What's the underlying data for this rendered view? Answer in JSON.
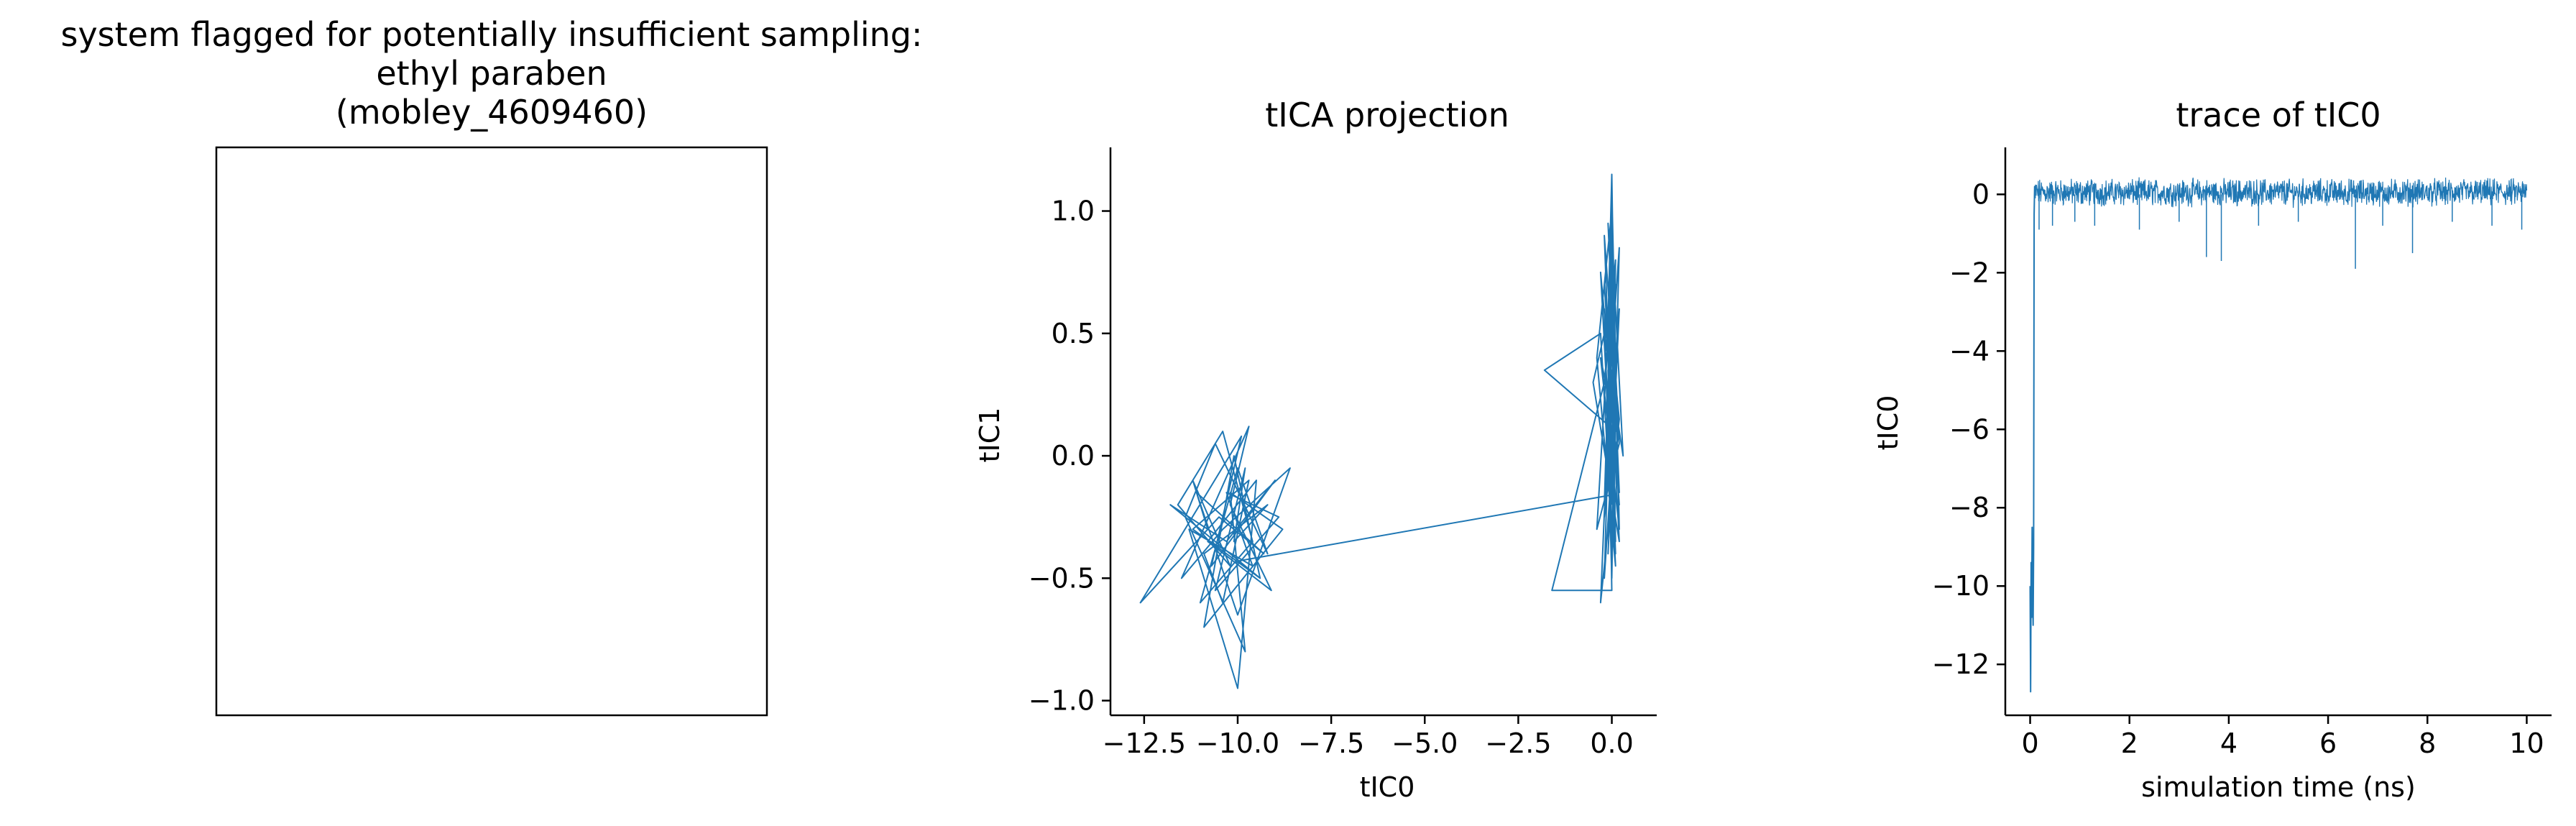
{
  "panel1": {
    "title_lines": [
      "system flagged for potentially insufficient sampling:",
      "ethyl paraben",
      "(mobley_4609460)"
    ]
  },
  "chart_data": [
    {
      "type": "line",
      "title": "tICA projection",
      "xlabel": "tIC0",
      "ylabel": "tIC1",
      "xlim": [
        -13.4,
        1.2
      ],
      "ylim": [
        -1.06,
        1.26
      ],
      "xticks": [
        -12.5,
        -10.0,
        -7.5,
        -5.0,
        -2.5,
        0.0
      ],
      "xtick_labels": [
        "−12.5",
        "−10.0",
        "−7.5",
        "−5.0",
        "−2.5",
        "0.0"
      ],
      "yticks": [
        -1.0,
        -0.5,
        0.0,
        0.5,
        1.0
      ],
      "ytick_labels": [
        "−1.0",
        "−0.5",
        "0.0",
        "0.5",
        "1.0"
      ],
      "grid": false,
      "color": "#1f77b4",
      "series": [
        {
          "x": [
            -10.8,
            -11.2,
            -10.2,
            -11.6,
            -10.4,
            -9.6,
            -11.0,
            -10.0,
            -9.2,
            -10.6,
            -11.4,
            -9.8,
            -10.2,
            -8.8,
            -10.9,
            -10.1,
            -9.4,
            -11.8,
            -10.3,
            -9.0,
            -10.7,
            -9.9,
            -12.6,
            -10.5,
            -9.3,
            -11.1,
            -10.0,
            -8.6,
            -10.4,
            -11.5,
            -9.7,
            -10.2,
            -9.1,
            -10.8,
            -9.5,
            -10.0,
            -11.3,
            -9.6,
            -10.3,
            -8.9,
            -10.6,
            -9.8,
            -10.1,
            -9.2,
            -10.9,
            -10.4,
            -9.7,
            -11.2,
            -9.4,
            -10.0
          ],
          "y": [
            -0.3,
            -0.1,
            -0.45,
            -0.2,
            0.1,
            -0.35,
            -0.6,
            -0.05,
            -0.4,
            0.05,
            -0.25,
            -0.8,
            -0.15,
            -0.3,
            -0.7,
            0.0,
            -0.5,
            -0.2,
            -0.35,
            -0.1,
            -0.45,
            0.08,
            -0.6,
            -0.25,
            -0.4,
            -0.15,
            -0.65,
            -0.05,
            -0.3,
            -0.5,
            0.12,
            -0.2,
            -0.55,
            -0.35,
            -0.1,
            -0.95,
            -0.3,
            -0.45,
            -0.15,
            -0.25,
            -0.55,
            -0.05,
            -0.35,
            -0.2,
            -0.4,
            -0.6,
            -0.1,
            -0.3,
            -0.5,
            -0.43
          ]
        },
        {
          "x": [
            -10.0,
            0.0
          ],
          "y": [
            -0.43,
            -0.16
          ]
        },
        {
          "x": [
            0.0,
            0.1,
            -0.1,
            0.2,
            -0.2,
            0.0,
            0.1,
            -0.3,
            0.2,
            0.0,
            -0.1,
            0.1,
            -0.2,
            0.3,
            0.0,
            -0.1,
            0.1,
            -0.5,
            0.2,
            -0.1,
            0.0,
            0.1,
            -0.2,
            0.0,
            0.2,
            -0.1,
            0.1,
            -0.3,
            0.0,
            0.2,
            -0.1,
            0.1,
            0.0,
            -0.2,
            0.1,
            -1.8,
            -0.3,
            0.0,
            0.2,
            -0.1,
            0.1,
            -0.4,
            0.0,
            0.1,
            -0.2,
            0.2,
            -0.1,
            0.0,
            -1.6,
            -0.2,
            0.1,
            0.0,
            -0.1,
            0.2,
            -0.3,
            0.0,
            0.1,
            -0.2,
            0.1,
            0.0,
            -0.1,
            0.2,
            -0.4,
            0.0,
            0.1,
            -0.2,
            0.0,
            0.1,
            -0.1,
            0.0
          ],
          "y": [
            -0.16,
            0.3,
            -0.4,
            0.6,
            -0.2,
            0.8,
            0.1,
            0.4,
            -0.3,
            1.1,
            0.2,
            -0.45,
            0.5,
            0.0,
            0.9,
            -0.1,
            0.7,
            0.3,
            -0.35,
            0.55,
            1.15,
            0.15,
            -0.25,
            0.65,
            0.05,
            0.45,
            -0.4,
            0.75,
            0.25,
            -0.15,
            0.95,
            0.35,
            -0.5,
            0.6,
            0.1,
            0.35,
            0.5,
            -0.3,
            0.85,
            0.2,
            -0.45,
            0.4,
            1.0,
            0.0,
            0.7,
            -0.2,
            0.45,
            -0.55,
            -0.55,
            0.3,
            0.8,
            -0.1,
            0.6,
            0.15,
            -0.6,
            0.5,
            -0.35,
            0.9,
            0.25,
            -0.45,
            0.4,
            0.05,
            -0.3,
            0.75,
            0.2,
            -0.5,
            0.55,
            0.0,
            0.35,
            -0.2
          ]
        }
      ]
    },
    {
      "type": "line",
      "title": "trace of tIC0",
      "xlabel": "simulation time (ns)",
      "ylabel": "tIC0",
      "xlim": [
        -0.5,
        10.5
      ],
      "ylim": [
        -13.3,
        1.2
      ],
      "xticks": [
        0,
        2,
        4,
        6,
        8,
        10
      ],
      "xtick_labels": [
        "0",
        "2",
        "4",
        "6",
        "8",
        "10"
      ],
      "yticks": [
        0,
        -2,
        -4,
        -6,
        -8,
        -10,
        -12
      ],
      "ytick_labels": [
        "0",
        "−2",
        "−4",
        "−6",
        "−8",
        "−10",
        "−12"
      ],
      "grid": false,
      "color": "#1f77b4",
      "dips": [
        [
          0.18,
          -0.9
        ],
        [
          0.45,
          -0.8
        ],
        [
          0.9,
          -0.7
        ],
        [
          1.3,
          -0.8
        ],
        [
          2.2,
          -0.9
        ],
        [
          3.0,
          -0.7
        ],
        [
          3.55,
          -1.6
        ],
        [
          3.85,
          -1.7
        ],
        [
          4.6,
          -0.8
        ],
        [
          5.4,
          -0.7
        ],
        [
          6.55,
          -1.9
        ],
        [
          7.1,
          -0.8
        ],
        [
          7.7,
          -1.5
        ],
        [
          8.5,
          -0.7
        ],
        [
          9.3,
          -0.8
        ],
        [
          9.9,
          -0.9
        ]
      ],
      "series": [
        {
          "x": [
            0.0,
            0.01,
            0.02,
            0.03,
            0.04,
            0.05,
            0.06,
            0.07,
            0.08,
            0.09,
            0.1
          ],
          "y": [
            -10.0,
            -12.7,
            -9.4,
            -10.8,
            -8.5,
            -10.3,
            -11.0,
            -9.0,
            -0.5,
            0.2,
            -0.1
          ]
        }
      ]
    }
  ]
}
